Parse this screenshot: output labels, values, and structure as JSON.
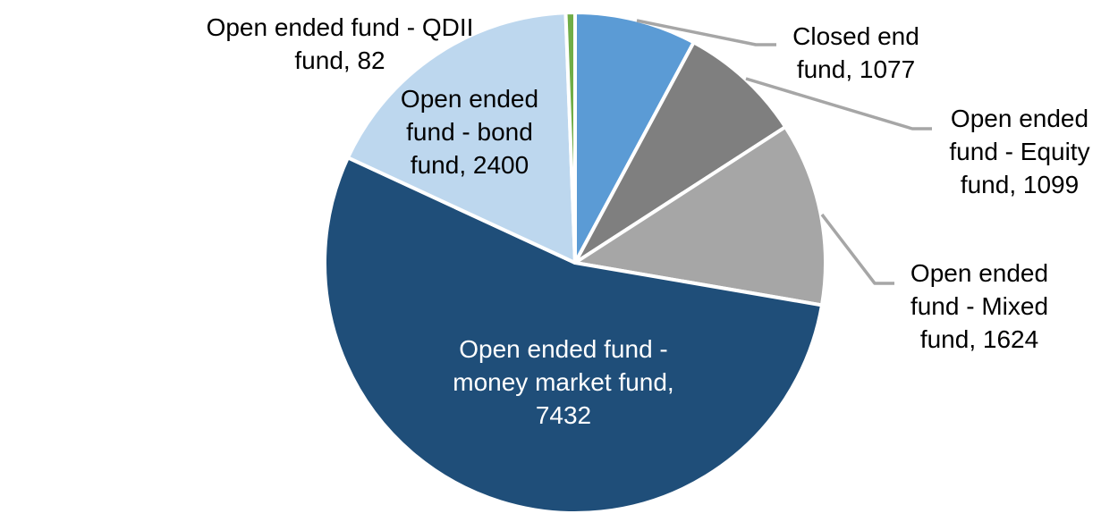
{
  "page": {
    "background_color": "#FFFFFF"
  },
  "chart_data": {
    "type": "pie",
    "title": "",
    "start_angle_deg": 0,
    "direction": "clockwise",
    "legend_position": "none",
    "labels_style": "category name and value, outside or inside slice",
    "slice_border_color": "#FFFFFF",
    "leader_line_color": "#A6A6A6",
    "label_text_color": "#000000",
    "slices": [
      {
        "id": "closed-end-fund",
        "label": "Closed end fund",
        "value": 1077,
        "color": "#5B9BD5",
        "text_color": "#000000",
        "display": "Closed end\nfund, 1077"
      },
      {
        "id": "open-ended-equity-fund",
        "label": "Open ended fund - Equity fund",
        "value": 1099,
        "color": "#7F7F7F",
        "text_color": "#000000",
        "display": "Open ended\nfund - Equity\nfund, 1099"
      },
      {
        "id": "open-ended-mixed-fund",
        "label": "Open ended fund - Mixed fund",
        "value": 1624,
        "color": "#A6A6A6",
        "text_color": "#000000",
        "display": "Open ended\nfund - Mixed\nfund, 1624"
      },
      {
        "id": "open-ended-money-market-fund",
        "label": "Open ended fund - money market fund",
        "value": 7432,
        "color": "#1F4E79",
        "text_color": "#FFFFFF",
        "display": "Open ended fund -\nmoney market fund,\n7432"
      },
      {
        "id": "open-ended-bond-fund",
        "label": "Open ended fund - bond fund",
        "value": 2400,
        "color": "#BDD7EE",
        "text_color": "#000000",
        "display": "Open ended\nfund - bond\nfund, 2400"
      },
      {
        "id": "open-ended-qdii-fund",
        "label": "Open ended fund - QDII fund",
        "value": 82,
        "color": "#70AD47",
        "text_color": "#000000",
        "display": "Open ended fund - QDII\nfund, 82"
      }
    ]
  }
}
